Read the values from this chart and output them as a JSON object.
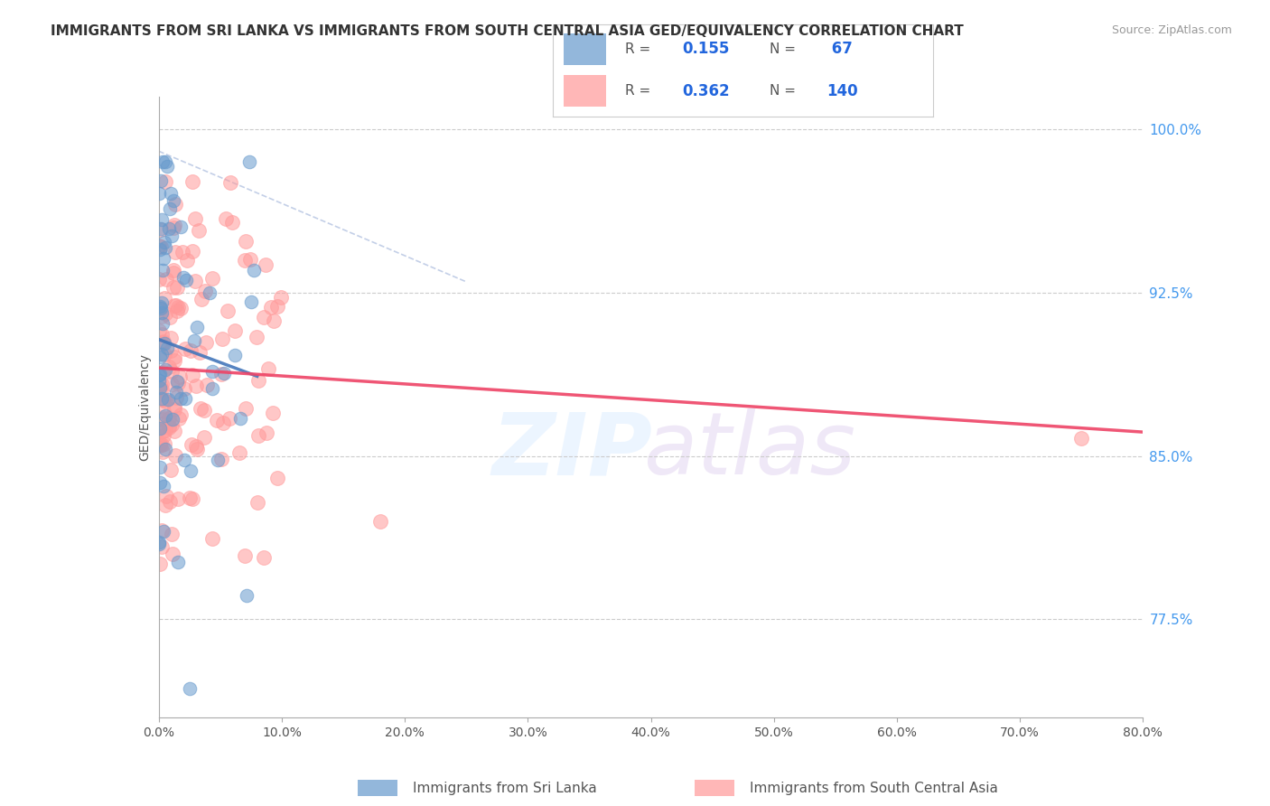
{
  "title": "IMMIGRANTS FROM SRI LANKA VS IMMIGRANTS FROM SOUTH CENTRAL ASIA GED/EQUIVALENCY CORRELATION CHART",
  "source": "Source: ZipAtlas.com",
  "ylabel": "GED/Equivalency",
  "xlim": [
    0.0,
    0.8
  ],
  "ylim": [
    0.73,
    1.015
  ],
  "sri_lanka_color": "#6699CC",
  "south_asia_color": "#FF9999",
  "sri_lanka_R": 0.155,
  "sri_lanka_N": 67,
  "south_asia_R": 0.362,
  "south_asia_N": 140,
  "legend_label1": "Immigrants from Sri Lanka",
  "legend_label2": "Immigrants from South Central Asia",
  "right_ytick_vals": [
    0.775,
    0.85,
    0.925,
    1.0
  ],
  "right_ytick_labels": [
    "77.5%",
    "85.0%",
    "92.5%",
    "100.0%"
  ]
}
